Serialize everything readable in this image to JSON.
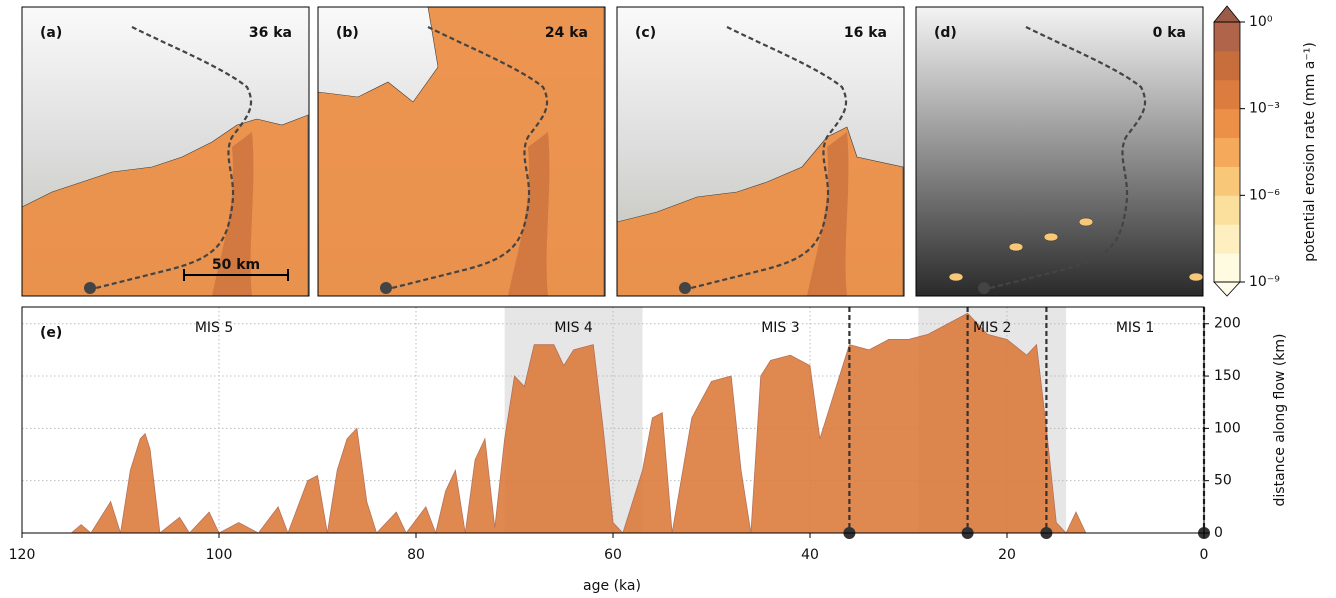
{
  "maps": [
    {
      "label": "(a)",
      "age": "36 ka"
    },
    {
      "label": "(b)",
      "age": "24 ka"
    },
    {
      "label": "(c)",
      "age": "16 ka"
    },
    {
      "label": "(d)",
      "age": "0 ka"
    }
  ],
  "scale_bar": "50 km",
  "colorbar": {
    "label": "potential erosion rate (mm a⁻¹)",
    "log": true,
    "lim": [
      1e-09,
      1
    ],
    "colors": [
      "#fffbe0",
      "#fdefbf",
      "#fbdf9c",
      "#f8c878",
      "#f4aa5a",
      "#ec9048",
      "#dc7c3e",
      "#c86e3c",
      "#b0644a"
    ],
    "ticks": [
      {
        "value": 1,
        "label": "10⁰"
      },
      {
        "value": 0.001,
        "label": "10⁻³"
      },
      {
        "value": 1e-06,
        "label": "10⁻⁶"
      },
      {
        "value": 1e-09,
        "label": "10⁻⁹"
      }
    ]
  },
  "chart_data": {
    "type": "area",
    "panel_label": "(e)",
    "xlabel": "age (ka)",
    "ylabel": "distance along flow (km)",
    "x": [
      115,
      114,
      113,
      111,
      110,
      109,
      108,
      107.5,
      107,
      106,
      104,
      103,
      101,
      100,
      98,
      96,
      94,
      93,
      91,
      90,
      89,
      88,
      87,
      86,
      85,
      84,
      82,
      81,
      79,
      78,
      77,
      76,
      75,
      74,
      73,
      72,
      71,
      70,
      69,
      68,
      66,
      65,
      64,
      62,
      61,
      60,
      59,
      57,
      56,
      55,
      54,
      52,
      50,
      48,
      47,
      46,
      45,
      44,
      42,
      40,
      39,
      38,
      37,
      36,
      34,
      32,
      30,
      28,
      26,
      24,
      22,
      20,
      18,
      17,
      16,
      15,
      14,
      13,
      12
    ],
    "series": [
      {
        "color": "#dc7c3e",
        "axis": "y2",
        "values": [
          0,
          8,
          0,
          30,
          0,
          60,
          90,
          95,
          80,
          0,
          15,
          0,
          20,
          0,
          10,
          0,
          25,
          0,
          50,
          55,
          0,
          60,
          90,
          100,
          30,
          0,
          20,
          0,
          25,
          0,
          40,
          60,
          0,
          70,
          90,
          5,
          90,
          150,
          140,
          180,
          180,
          160,
          175,
          180,
          100,
          10,
          0,
          60,
          110,
          115,
          0,
          110,
          145,
          150,
          60,
          0,
          150,
          165,
          170,
          160,
          90,
          120,
          150,
          180,
          175,
          185,
          185,
          190,
          200,
          210,
          190,
          185,
          170,
          180,
          100,
          10,
          0,
          20,
          0
        ]
      }
    ],
    "xlim": [
      120,
      0
    ],
    "xticks": [
      0,
      20,
      40,
      60,
      80,
      100,
      120
    ],
    "y2lim": [
      0,
      216
    ],
    "y2ticks": [
      0,
      50,
      100,
      150,
      200
    ],
    "grid": true,
    "stages": [
      {
        "label": "MIS 5",
        "start": 130,
        "end": 71,
        "shaded": false
      },
      {
        "label": "MIS 4",
        "start": 71,
        "end": 57,
        "shaded": true
      },
      {
        "label": "MIS 3",
        "start": 57,
        "end": 29,
        "shaded": false
      },
      {
        "label": "MIS 2",
        "start": 29,
        "end": 14,
        "shaded": true
      },
      {
        "label": "MIS 1",
        "start": 14,
        "end": 0,
        "shaded": false
      }
    ],
    "markers": [
      36,
      24,
      16,
      0
    ]
  }
}
